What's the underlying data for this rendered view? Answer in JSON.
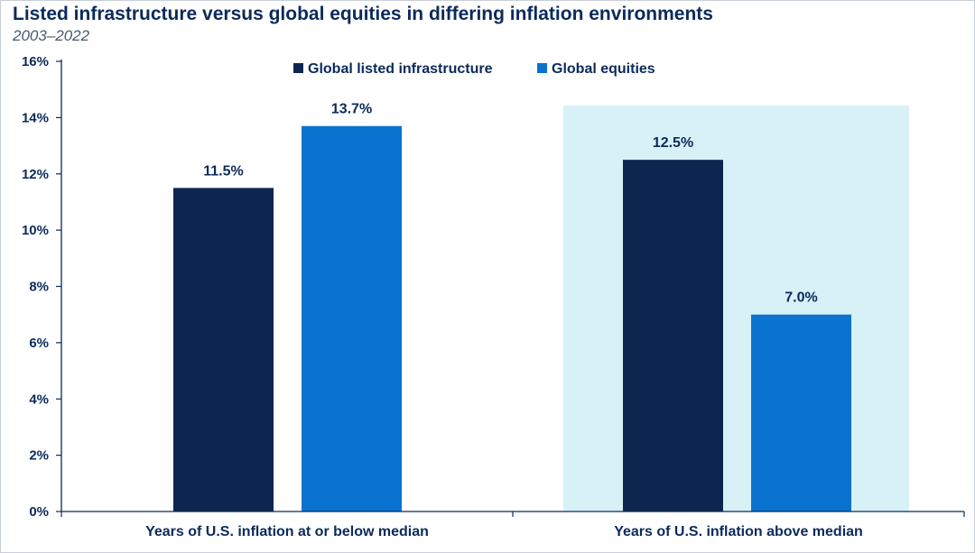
{
  "header": {
    "title": "Listed infrastructure versus global equities in differing inflation environments",
    "subtitle": "2003–2022"
  },
  "colors": {
    "infrastructure": "#0c2650",
    "equities": "#0a73cf",
    "highlight": "#d8f1f6",
    "axis": "#0b2a5b"
  },
  "chart_data": {
    "type": "bar",
    "categories": [
      "Years of U.S. inflation at or below median",
      "Years of U.S. inflation above median"
    ],
    "series": [
      {
        "name": "Global listed infrastructure",
        "values": [
          11.5,
          12.5
        ],
        "labels": [
          "11.5%",
          "12.5%"
        ]
      },
      {
        "name": "Global equities",
        "values": [
          13.7,
          7.0
        ],
        "labels": [
          "13.7%",
          "7.0%"
        ]
      }
    ],
    "ylim": [
      0,
      16
    ],
    "yticks": [
      "0%",
      "2%",
      "4%",
      "6%",
      "8%",
      "10%",
      "12%",
      "14%",
      "16%"
    ],
    "highlighted_category": 1,
    "legend_position": "top-center",
    "grid": false
  }
}
